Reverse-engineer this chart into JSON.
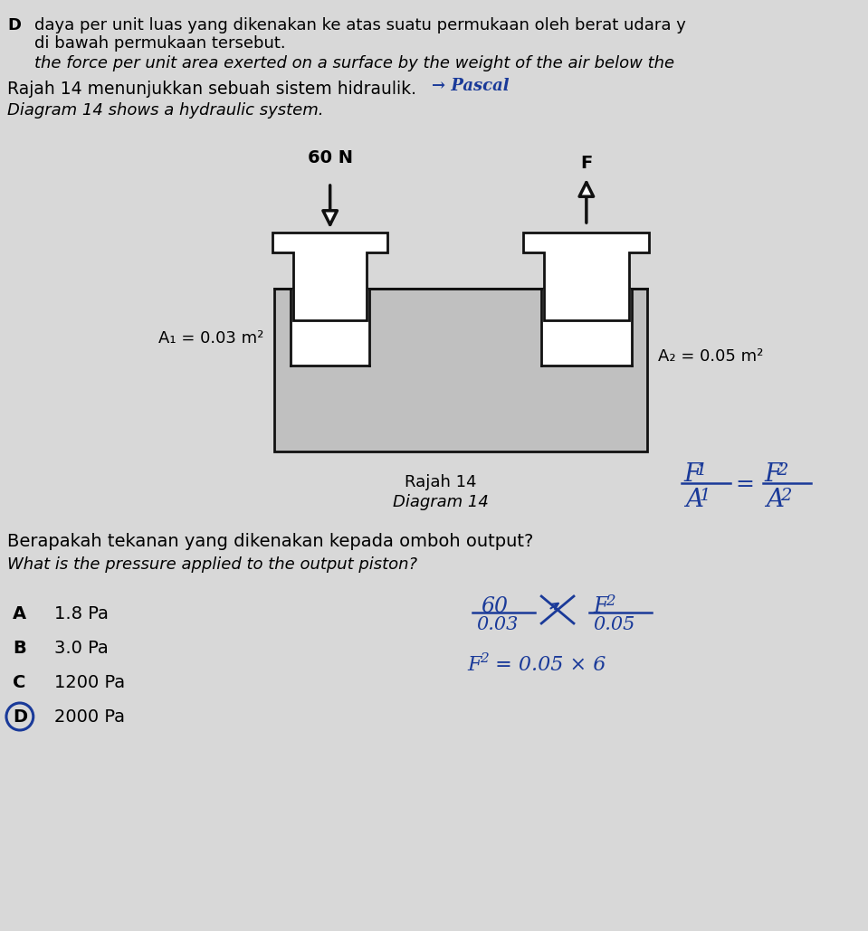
{
  "bg_color": "#e0e0e0",
  "line1_D": "D",
  "line1_text": "daya per unit luas yang dikenakan ke atas suatu permukaan oleh berat udara y",
  "line2_text": "di bawah permukaan tersebut.",
  "line3_text": "the force per unit area exerted on a surface by the weight of the air below the",
  "intro_malay": "Rajah 14 menunjukkan sebuah sistem hidraulik.",
  "intro_eng": "Diagram 14 shows a hydraulic system.",
  "force_left_label": "60 N",
  "force_right_label": "F",
  "area_left_label": "A₁ = 0.03 m²",
  "area_right_label": "A₂ = 0.05 m²",
  "diagram_label_malay": "Rajah 14",
  "diagram_label_eng": "Diagram 14",
  "question_malay": "Berapakah tekanan yang dikenakan kepada omboh output?",
  "question_eng": "What is the pressure applied to the output piston?",
  "options": [
    {
      "letter": "A",
      "text": "1.8 Pa"
    },
    {
      "letter": "B",
      "text": "3.0 Pa"
    },
    {
      "letter": "C",
      "text": "1200 Pa"
    },
    {
      "letter": "D",
      "text": "2000 Pa"
    }
  ],
  "correct_answer": "D",
  "fill_color": "#c0c0c0",
  "border_color": "#111111",
  "white": "#ffffff",
  "handwrite_color": "#1a3a99"
}
